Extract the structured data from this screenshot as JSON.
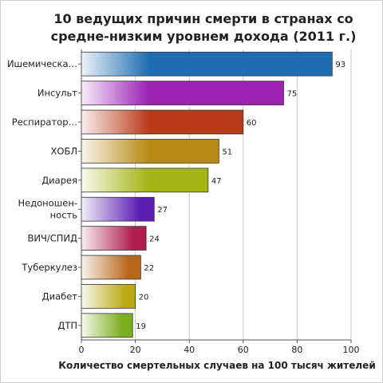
{
  "chart_data": {
    "type": "bar",
    "orientation": "horizontal",
    "title": "10 ведущих причин смерти в странах со\nсредне-низким уровнем дохода (2011 г.)",
    "xlabel": "Количество смертельных случаев на 100 тысяч жителей",
    "ylabel": "",
    "xlim": [
      0,
      100
    ],
    "xticks": [
      0,
      20,
      40,
      60,
      80,
      100
    ],
    "grid": true,
    "categories": [
      {
        "label": [
          "Ишемическа…"
        ],
        "value": 93,
        "color": "#1f6db0"
      },
      {
        "label": [
          "Инсульт"
        ],
        "value": 75,
        "color": "#9b22b5"
      },
      {
        "label": [
          "Респиратор…"
        ],
        "value": 60,
        "color": "#b83a18"
      },
      {
        "label": [
          "ХОБЛ"
        ],
        "value": 51,
        "color": "#b88a15"
      },
      {
        "label": [
          "Диарея"
        ],
        "value": 47,
        "color": "#a3b516"
      },
      {
        "label": [
          "Недоношен-",
          "ность"
        ],
        "value": 27,
        "color": "#5a1eb0"
      },
      {
        "label": [
          "ВИЧ/СПИД"
        ],
        "value": 24,
        "color": "#b01e4e"
      },
      {
        "label": [
          "Туберкулез"
        ],
        "value": 22,
        "color": "#b8661a"
      },
      {
        "label": [
          "Диабет"
        ],
        "value": 20,
        "color": "#bba915"
      },
      {
        "label": [
          "ДТП"
        ],
        "value": 19,
        "color": "#7aae1e"
      }
    ]
  }
}
